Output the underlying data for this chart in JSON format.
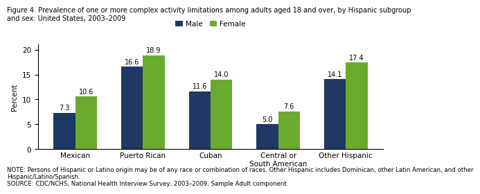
{
  "title_line1": "Figure 4. Prevalence of one or more complex activity limitations among adults aged 18 and over, by Hispanic subgroup",
  "title_line2": "and sex: United States, 2003–2009",
  "categories": [
    "Mexican",
    "Puerto Rican",
    "Cuban",
    "Central or\nSouth American",
    "Other Hispanic"
  ],
  "male_values": [
    7.3,
    16.6,
    11.6,
    5.0,
    14.1
  ],
  "female_values": [
    10.6,
    18.9,
    14.0,
    7.6,
    17.4
  ],
  "male_color": "#1F3864",
  "female_color": "#6AAB2E",
  "ylabel": "Percent",
  "ylim": [
    0,
    21
  ],
  "yticks": [
    0,
    5,
    10,
    15,
    20
  ],
  "bar_width": 0.32,
  "legend_labels": [
    "Male",
    "Female"
  ],
  "note_line1": "NOTE: Persons of Hispanic or Latino origin may be of any race or combination of races. Other Hispanic includes Dominican, other Latin American, and other",
  "note_line2": "Hispanic/Latino/Spanish.",
  "note_line3": "SOURCE: CDC/NCHS, National Health Interview Survey, 2003–2009, Sample Adult component.",
  "title_fontsize": 7.0,
  "axis_fontsize": 7.5,
  "tick_fontsize": 7.5,
  "note_fontsize": 6.2,
  "label_fontsize": 7.0
}
